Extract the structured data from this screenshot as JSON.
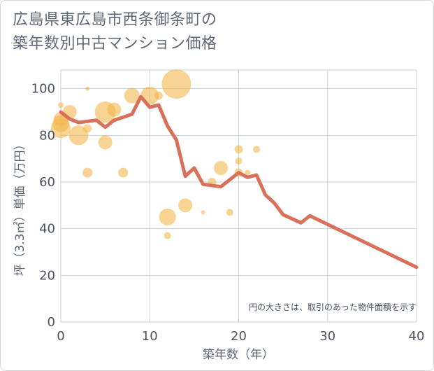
{
  "title_lines": [
    "広島県東広島市西条御条町の",
    "築年数別中古マンション価格"
  ],
  "chart_data": {
    "type": "scatter",
    "xlabel": "築年数（年）",
    "ylabel": "坪（3.3㎡）単価（万円）",
    "xlim": [
      0,
      40
    ],
    "ylim": [
      0,
      108
    ],
    "xticks": [
      "0",
      "10",
      "20",
      "30",
      "40"
    ],
    "yticks": [
      "0",
      "20",
      "40",
      "60",
      "80",
      "100"
    ],
    "grid": true,
    "note": "円の大きさは、取引のあった物件面積を示す",
    "colors": {
      "bubble": "#f2b84b",
      "line": "#d9705a",
      "grid": "#c9d3e0"
    },
    "bubbles": [
      {
        "x": 0,
        "y": 83,
        "s": 14
      },
      {
        "x": 0,
        "y": 87,
        "s": 10
      },
      {
        "x": 0,
        "y": 93,
        "s": 4
      },
      {
        "x": 0,
        "y": 85,
        "s": 12
      },
      {
        "x": 1,
        "y": 90,
        "s": 10
      },
      {
        "x": 2,
        "y": 80,
        "s": 14
      },
      {
        "x": 3,
        "y": 83,
        "s": 6
      },
      {
        "x": 3,
        "y": 100,
        "s": 3
      },
      {
        "x": 3,
        "y": 64,
        "s": 7
      },
      {
        "x": 5,
        "y": 90,
        "s": 15
      },
      {
        "x": 5,
        "y": 77,
        "s": 10
      },
      {
        "x": 6,
        "y": 91,
        "s": 10
      },
      {
        "x": 7,
        "y": 64,
        "s": 7
      },
      {
        "x": 8,
        "y": 97,
        "s": 11
      },
      {
        "x": 10,
        "y": 97,
        "s": 13
      },
      {
        "x": 11,
        "y": 97,
        "s": 6
      },
      {
        "x": 12,
        "y": 45,
        "s": 12
      },
      {
        "x": 12,
        "y": 37,
        "s": 5
      },
      {
        "x": 13,
        "y": 102,
        "s": 21
      },
      {
        "x": 14,
        "y": 50,
        "s": 10
      },
      {
        "x": 16,
        "y": 47,
        "s": 3
      },
      {
        "x": 17,
        "y": 60,
        "s": 6
      },
      {
        "x": 18,
        "y": 66,
        "s": 10
      },
      {
        "x": 19,
        "y": 47,
        "s": 5
      },
      {
        "x": 20,
        "y": 74,
        "s": 6
      },
      {
        "x": 20,
        "y": 69,
        "s": 5
      },
      {
        "x": 20,
        "y": 64,
        "s": 6
      },
      {
        "x": 21,
        "y": 64,
        "s": 4
      },
      {
        "x": 22,
        "y": 74,
        "s": 5
      }
    ],
    "series": [
      {
        "x": [
          0,
          1,
          2,
          4,
          5,
          6,
          8,
          9,
          10,
          11,
          12,
          13,
          14,
          15,
          16,
          18,
          20,
          21,
          22,
          23,
          24,
          25,
          27,
          28,
          40
        ],
        "values": [
          90,
          87,
          85.5,
          86.5,
          83.5,
          86.5,
          89,
          96.5,
          92,
          93,
          84,
          78,
          62.5,
          66,
          59,
          58,
          64,
          62,
          63,
          54.5,
          51,
          46,
          42.5,
          45.5,
          23.5
        ]
      }
    ]
  }
}
